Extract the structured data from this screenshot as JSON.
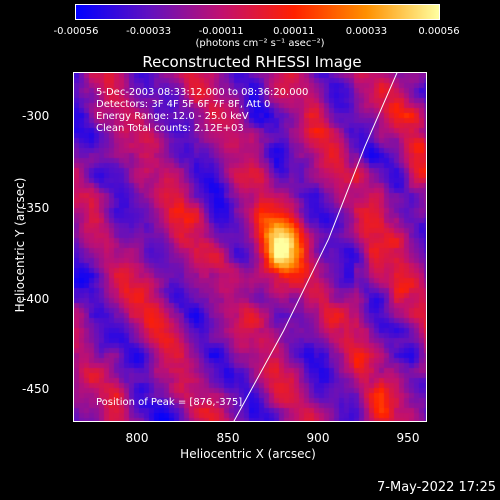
{
  "colorbar": {
    "ticks": [
      "-0.00056",
      "-0.00033",
      "-0.00011",
      "0.00011",
      "0.00033",
      "0.00056"
    ],
    "units": "(photons cm⁻² s⁻¹ asec⁻²)",
    "colors": [
      "#0000ff",
      "#6010c0",
      "#c01070",
      "#ff2000",
      "#ff9000",
      "#ffffa0"
    ]
  },
  "title": "Reconstructed RHESSI Image",
  "annotations": {
    "time": "5-Dec-2003 08:33:12.000 to 08:36:20.000",
    "detectors": "Detectors: 3F 4F 5F 6F 7F 8F, Att 0",
    "energy": "Energy Range: 12.0 - 25.0 keV",
    "clean": "Clean     Total counts: 2.12E+03",
    "peak": "Position of Peak = [876,-375]"
  },
  "axes": {
    "xlabel": "Heliocentric X (arcsec)",
    "ylabel": "Heliocentric Y (arcsec)",
    "xticks": [
      "800",
      "850",
      "900",
      "950"
    ],
    "yticks": [
      "-300",
      "-350",
      "-400",
      "-450"
    ]
  },
  "chart_data": {
    "type": "heatmap",
    "title": "Reconstructed RHESSI Image",
    "xlabel": "Heliocentric X (arcsec)",
    "ylabel": "Heliocentric Y (arcsec)",
    "xlim": [
      764,
      960
    ],
    "ylim": [
      -470,
      -280
    ],
    "zlim": [
      -0.00056,
      0.00056
    ],
    "peak": {
      "x": 876,
      "y": -375
    },
    "limb_arc": [
      [
        852,
        -470
      ],
      [
        880,
        -420
      ],
      [
        905,
        -370
      ],
      [
        925,
        -320
      ],
      [
        945,
        -275
      ]
    ],
    "grid": false
  },
  "footer": {
    "datetime": "7-May-2022 17:25"
  }
}
